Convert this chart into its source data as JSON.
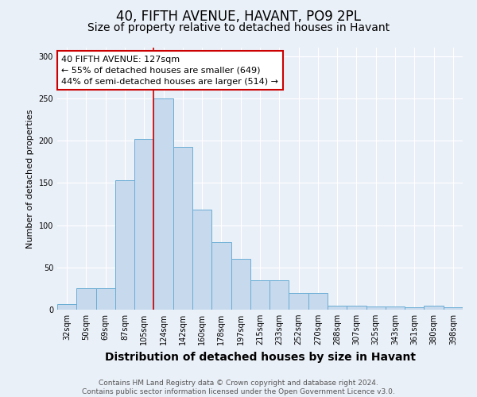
{
  "title1": "40, FIFTH AVENUE, HAVANT, PO9 2PL",
  "title2": "Size of property relative to detached houses in Havant",
  "xlabel": "Distribution of detached houses by size in Havant",
  "ylabel": "Number of detached properties",
  "categories": [
    "32sqm",
    "50sqm",
    "69sqm",
    "87sqm",
    "105sqm",
    "124sqm",
    "142sqm",
    "160sqm",
    "178sqm",
    "197sqm",
    "215sqm",
    "233sqm",
    "252sqm",
    "270sqm",
    "288sqm",
    "307sqm",
    "325sqm",
    "343sqm",
    "361sqm",
    "380sqm",
    "398sqm"
  ],
  "values": [
    7,
    25,
    25,
    153,
    202,
    250,
    193,
    118,
    80,
    60,
    35,
    35,
    20,
    20,
    5,
    5,
    4,
    4,
    3,
    5,
    3
  ],
  "bar_color": "#c6d9ed",
  "bar_edge_color": "#6aadd5",
  "vline_color": "#cc0000",
  "vline_x": 4.5,
  "annotation_text": "40 FIFTH AVENUE: 127sqm\n← 55% of detached houses are smaller (649)\n44% of semi-detached houses are larger (514) →",
  "annotation_box_color": "#ffffff",
  "annotation_box_edge_color": "#cc0000",
  "footnote": "Contains HM Land Registry data © Crown copyright and database right 2024.\nContains public sector information licensed under the Open Government Licence v3.0.",
  "ylim": [
    0,
    310
  ],
  "background_color": "#eaf0f8",
  "grid_color": "#ffffff",
  "title1_fontsize": 12,
  "title2_fontsize": 10,
  "ylabel_fontsize": 8,
  "xlabel_fontsize": 10,
  "tick_fontsize": 7,
  "footnote_fontsize": 6.5
}
